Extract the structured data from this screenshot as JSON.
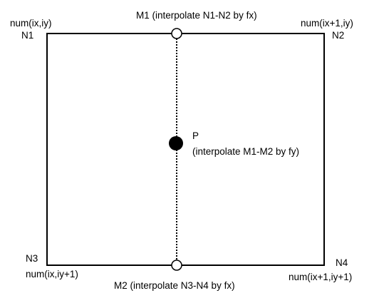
{
  "diagram": {
    "corners": {
      "n1": {
        "name": "N1",
        "num": "num(ix,iy)"
      },
      "n2": {
        "name": "N2",
        "num": "num(ix+1,iy)"
      },
      "n3": {
        "name": "N3",
        "num": "num(ix,iy+1)"
      },
      "n4": {
        "name": "N4",
        "num": "num(ix+1,iy+1)"
      }
    },
    "m1": {
      "label": "M1 (interpolate N1-N2 by fx)"
    },
    "m2": {
      "label": "M2 (interpolate N3-N4 by fx)"
    },
    "p": {
      "name": "P",
      "label": "(interpolate M1-M2 by fy)"
    },
    "colors": {
      "line": "#000000",
      "fill": "#ffffff"
    }
  }
}
